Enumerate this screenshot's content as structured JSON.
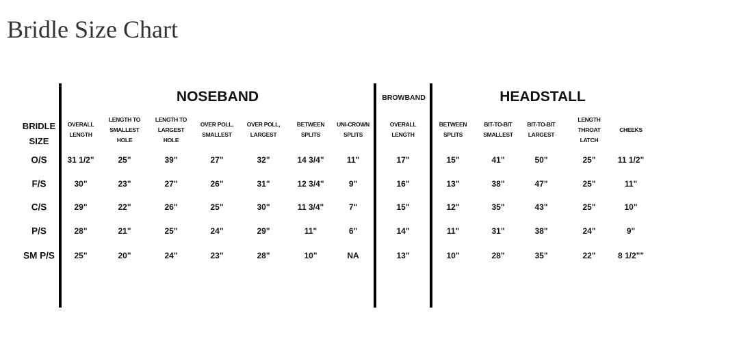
{
  "page_title": "Bridle Size Chart",
  "chart": {
    "size_header": "BRIDLE\nSIZE",
    "sections": [
      {
        "name": "NOSEBAND",
        "columns": [
          "OVERALL\nLENGTH",
          "LENGTH TO\nSMALLEST\nHOLE",
          "LENGTH TO\nLARGEST\nHOLE",
          "OVER POLL,\nSMALLEST",
          "OVER POLL,\nLARGEST",
          "BETWEEN\nSPLITS",
          "UNI-CROWN\nSPLITS"
        ]
      },
      {
        "name": "BROWBAND",
        "columns": [
          "OVERALL\nLENGTH"
        ]
      },
      {
        "name": "HEADSTALL",
        "columns": [
          "BETWEEN\nSPLITS",
          "BIT-TO-BIT\nSMALLEST",
          "BIT-TO-BIT\nLARGEST",
          "LENGTH\nTHROAT\nLATCH",
          "CHEEKS"
        ]
      }
    ],
    "rows": [
      {
        "size": "O/S",
        "values": [
          "31 1/2\"",
          "25\"",
          "39\"",
          "27\"",
          "32\"",
          "14 3/4\"",
          "11\"",
          "17\"",
          "15\"",
          "41\"",
          "50\"",
          "25\"",
          "11 1/2\""
        ]
      },
      {
        "size": "F/S",
        "values": [
          "30\"",
          "23\"",
          "27\"",
          "26\"",
          "31\"",
          "12 3/4\"",
          "9\"",
          "16\"",
          "13\"",
          "38\"",
          "47\"",
          "25\"",
          "11\""
        ]
      },
      {
        "size": "C/S",
        "values": [
          "29\"",
          "22\"",
          "26\"",
          "25\"",
          "30\"",
          "11 3/4\"",
          "7\"",
          "15\"",
          "12\"",
          "35\"",
          "43\"",
          "25\"",
          "10\""
        ]
      },
      {
        "size": "P/S",
        "values": [
          "28\"",
          "21\"",
          "25\"",
          "24\"",
          "29\"",
          "11\"",
          "6\"",
          "14\"",
          "11\"",
          "31\"",
          "38\"",
          "24\"",
          "9\""
        ]
      },
      {
        "size": "SM P/S",
        "values": [
          "25\"",
          "20\"",
          "24\"",
          "23\"",
          "28\"",
          "10\"",
          "NA",
          "13\"",
          "10\"",
          "28\"",
          "35\"",
          "22\"",
          "8 1/2\"\""
        ]
      }
    ]
  }
}
